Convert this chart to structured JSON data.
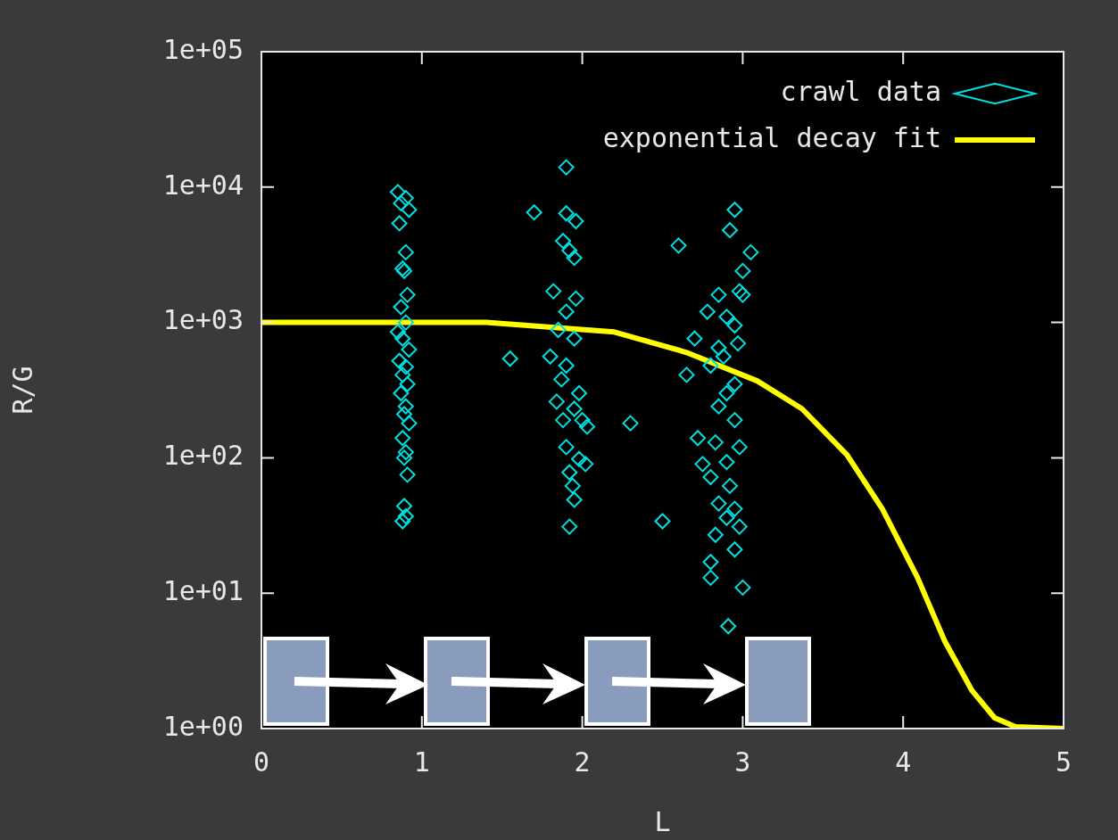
{
  "chart_data": {
    "type": "scatter",
    "xlabel": "L",
    "ylabel": "R/G",
    "log": "y",
    "grid": false,
    "legend": "top right",
    "marker": "diamond",
    "xlim": [
      0,
      5
    ],
    "xticks": [
      0,
      1,
      2,
      3,
      4,
      5
    ],
    "ylim": [
      1,
      100000
    ],
    "yticks": [
      {
        "value": 1,
        "label": "1e+00"
      },
      {
        "value": 10,
        "label": "1e+01"
      },
      {
        "value": 100,
        "label": "1e+02"
      },
      {
        "value": 1000,
        "label": "1e+03"
      },
      {
        "value": 10000,
        "label": "1e+04"
      },
      {
        "value": 100000,
        "label": "1e+05"
      }
    ],
    "series": [
      {
        "name": "crawl data",
        "type": "scatter",
        "color": "#00e0e0",
        "x": [
          0.85,
          0.9,
          0.87,
          0.92,
          0.86,
          0.9,
          0.88,
          0.89,
          0.91,
          0.87,
          0.9,
          0.85,
          0.88,
          0.92,
          0.86,
          0.9,
          0.88,
          0.91,
          0.87,
          0.9,
          0.89,
          0.92,
          0.88,
          0.9,
          0.89,
          0.91,
          0.89,
          0.9,
          0.88,
          1.9,
          1.7,
          1.9,
          1.96,
          1.88,
          1.92,
          1.95,
          1.82,
          1.96,
          1.9,
          1.85,
          1.95,
          1.8,
          1.55,
          1.9,
          1.87,
          1.98,
          1.84,
          1.95,
          2.0,
          1.88,
          2.03,
          1.9,
          1.98,
          2.02,
          1.92,
          1.94,
          1.95,
          1.92,
          2.3,
          2.5,
          2.95,
          2.92,
          2.6,
          3.05,
          3.0,
          2.98,
          3.0,
          2.85,
          2.78,
          2.9,
          2.95,
          2.7,
          2.97,
          2.85,
          2.88,
          2.8,
          2.65,
          2.95,
          2.9,
          2.85,
          2.95,
          2.72,
          2.83,
          2.98,
          2.75,
          2.9,
          2.8,
          2.92,
          2.85,
          2.95,
          2.9,
          2.83,
          2.98,
          2.95,
          2.8,
          2.8,
          3.0,
          2.91
        ],
        "values": [
          9200,
          8300,
          7600,
          6800,
          5400,
          3300,
          2500,
          2400,
          1600,
          1300,
          1000,
          850,
          760,
          630,
          520,
          470,
          410,
          350,
          300,
          240,
          210,
          180,
          140,
          110,
          100,
          75,
          44,
          37,
          34,
          14000,
          6500,
          6400,
          5600,
          4000,
          3400,
          3000,
          1700,
          1500,
          1200,
          880,
          760,
          560,
          540,
          480,
          380,
          300,
          260,
          230,
          190,
          190,
          170,
          120,
          98,
          90,
          78,
          62,
          49,
          31,
          180,
          34,
          6800,
          4800,
          3700,
          3300,
          2400,
          1700,
          1600,
          1600,
          1200,
          1100,
          950,
          760,
          700,
          650,
          560,
          480,
          410,
          350,
          300,
          240,
          190,
          140,
          130,
          120,
          90,
          93,
          72,
          62,
          46,
          42,
          36,
          27,
          31,
          21,
          17,
          13,
          11,
          5.7
        ]
      },
      {
        "name": "exponential decay fit",
        "type": "line",
        "color": "#ffff00",
        "marker": "none",
        "x": [
          0,
          1.4,
          2.2,
          2.65,
          3.09,
          3.37,
          3.65,
          3.87,
          4.09,
          4.26,
          4.43,
          4.57,
          4.7,
          5
        ],
        "values": [
          1000,
          1000,
          850,
          600,
          370,
          230,
          105,
          42,
          13,
          4.4,
          1.9,
          1.2,
          1.03,
          1
        ]
      }
    ]
  }
}
